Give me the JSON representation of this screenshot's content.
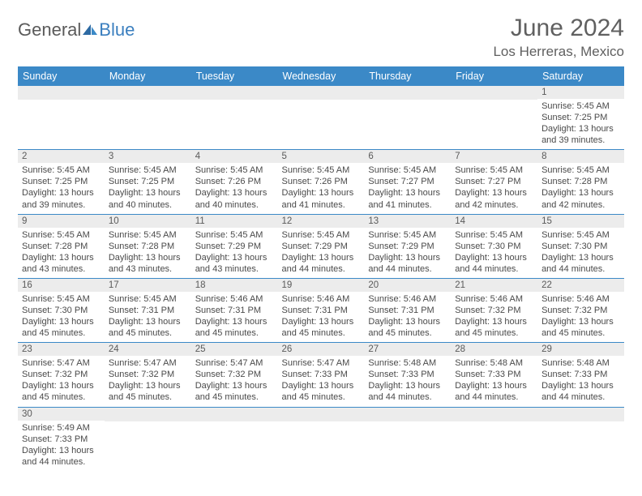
{
  "logo": {
    "part1": "General",
    "part2": "Blue"
  },
  "header": {
    "month_title": "June 2024",
    "location": "Los Herreras, Mexico"
  },
  "colors": {
    "header_bg": "#3b89c7",
    "header_fg": "#ffffff",
    "daynum_bg": "#ececec",
    "cell_border": "#3b89c7",
    "text": "#4a4a4a",
    "title_text": "#606060",
    "logo_blue": "#3b7fbf"
  },
  "weekdays": [
    "Sunday",
    "Monday",
    "Tuesday",
    "Wednesday",
    "Thursday",
    "Friday",
    "Saturday"
  ],
  "grid": [
    [
      null,
      null,
      null,
      null,
      null,
      null,
      {
        "n": "1",
        "sr": "5:45 AM",
        "ss": "7:25 PM",
        "dl": "13 hours and 39 minutes."
      }
    ],
    [
      {
        "n": "2",
        "sr": "5:45 AM",
        "ss": "7:25 PM",
        "dl": "13 hours and 39 minutes."
      },
      {
        "n": "3",
        "sr": "5:45 AM",
        "ss": "7:25 PM",
        "dl": "13 hours and 40 minutes."
      },
      {
        "n": "4",
        "sr": "5:45 AM",
        "ss": "7:26 PM",
        "dl": "13 hours and 40 minutes."
      },
      {
        "n": "5",
        "sr": "5:45 AM",
        "ss": "7:26 PM",
        "dl": "13 hours and 41 minutes."
      },
      {
        "n": "6",
        "sr": "5:45 AM",
        "ss": "7:27 PM",
        "dl": "13 hours and 41 minutes."
      },
      {
        "n": "7",
        "sr": "5:45 AM",
        "ss": "7:27 PM",
        "dl": "13 hours and 42 minutes."
      },
      {
        "n": "8",
        "sr": "5:45 AM",
        "ss": "7:28 PM",
        "dl": "13 hours and 42 minutes."
      }
    ],
    [
      {
        "n": "9",
        "sr": "5:45 AM",
        "ss": "7:28 PM",
        "dl": "13 hours and 43 minutes."
      },
      {
        "n": "10",
        "sr": "5:45 AM",
        "ss": "7:28 PM",
        "dl": "13 hours and 43 minutes."
      },
      {
        "n": "11",
        "sr": "5:45 AM",
        "ss": "7:29 PM",
        "dl": "13 hours and 43 minutes."
      },
      {
        "n": "12",
        "sr": "5:45 AM",
        "ss": "7:29 PM",
        "dl": "13 hours and 44 minutes."
      },
      {
        "n": "13",
        "sr": "5:45 AM",
        "ss": "7:29 PM",
        "dl": "13 hours and 44 minutes."
      },
      {
        "n": "14",
        "sr": "5:45 AM",
        "ss": "7:30 PM",
        "dl": "13 hours and 44 minutes."
      },
      {
        "n": "15",
        "sr": "5:45 AM",
        "ss": "7:30 PM",
        "dl": "13 hours and 44 minutes."
      }
    ],
    [
      {
        "n": "16",
        "sr": "5:45 AM",
        "ss": "7:30 PM",
        "dl": "13 hours and 45 minutes."
      },
      {
        "n": "17",
        "sr": "5:45 AM",
        "ss": "7:31 PM",
        "dl": "13 hours and 45 minutes."
      },
      {
        "n": "18",
        "sr": "5:46 AM",
        "ss": "7:31 PM",
        "dl": "13 hours and 45 minutes."
      },
      {
        "n": "19",
        "sr": "5:46 AM",
        "ss": "7:31 PM",
        "dl": "13 hours and 45 minutes."
      },
      {
        "n": "20",
        "sr": "5:46 AM",
        "ss": "7:31 PM",
        "dl": "13 hours and 45 minutes."
      },
      {
        "n": "21",
        "sr": "5:46 AM",
        "ss": "7:32 PM",
        "dl": "13 hours and 45 minutes."
      },
      {
        "n": "22",
        "sr": "5:46 AM",
        "ss": "7:32 PM",
        "dl": "13 hours and 45 minutes."
      }
    ],
    [
      {
        "n": "23",
        "sr": "5:47 AM",
        "ss": "7:32 PM",
        "dl": "13 hours and 45 minutes."
      },
      {
        "n": "24",
        "sr": "5:47 AM",
        "ss": "7:32 PM",
        "dl": "13 hours and 45 minutes."
      },
      {
        "n": "25",
        "sr": "5:47 AM",
        "ss": "7:32 PM",
        "dl": "13 hours and 45 minutes."
      },
      {
        "n": "26",
        "sr": "5:47 AM",
        "ss": "7:33 PM",
        "dl": "13 hours and 45 minutes."
      },
      {
        "n": "27",
        "sr": "5:48 AM",
        "ss": "7:33 PM",
        "dl": "13 hours and 44 minutes."
      },
      {
        "n": "28",
        "sr": "5:48 AM",
        "ss": "7:33 PM",
        "dl": "13 hours and 44 minutes."
      },
      {
        "n": "29",
        "sr": "5:48 AM",
        "ss": "7:33 PM",
        "dl": "13 hours and 44 minutes."
      }
    ],
    [
      {
        "n": "30",
        "sr": "5:49 AM",
        "ss": "7:33 PM",
        "dl": "13 hours and 44 minutes."
      },
      null,
      null,
      null,
      null,
      null,
      null
    ]
  ],
  "labels": {
    "sunrise": "Sunrise:",
    "sunset": "Sunset:",
    "daylight": "Daylight:"
  }
}
